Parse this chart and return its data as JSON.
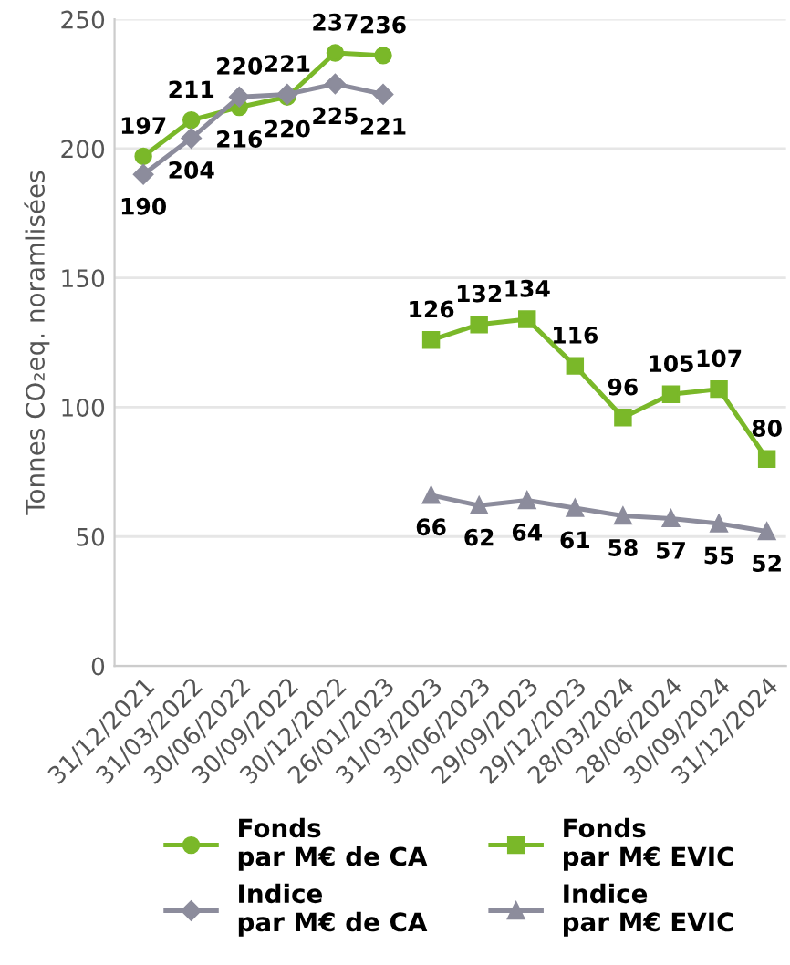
{
  "chart_data": {
    "type": "line",
    "ylabel": "Tonnes CO₂eq. noramlisées",
    "categories": [
      "31/12/2021",
      "31/03/2022",
      "30/06/2022",
      "30/09/2022",
      "30/12/2022",
      "26/01/2023",
      "31/03/2023",
      "30/06/2023",
      "29/09/2023",
      "29/12/2023",
      "28/03/2024",
      "28/06/2024",
      "30/09/2024",
      "31/12/2024"
    ],
    "series": [
      {
        "name": "Fonds\npar M€ de CA",
        "color": "#7ab829",
        "marker": "circle",
        "values": [
          197,
          211,
          216,
          220,
          237,
          236,
          null,
          null,
          null,
          null,
          null,
          null,
          null,
          null
        ]
      },
      {
        "name": "Indice\npar M€ de CA",
        "color": "#8c8c9c",
        "marker": "diamond",
        "values": [
          190,
          204,
          220,
          221,
          225,
          221,
          null,
          null,
          null,
          null,
          null,
          null,
          null,
          null
        ]
      },
      {
        "name": "Fonds\npar M€ EVIC",
        "color": "#7ab829",
        "marker": "square",
        "values": [
          null,
          null,
          null,
          null,
          null,
          null,
          126,
          132,
          134,
          116,
          96,
          105,
          107,
          80
        ]
      },
      {
        "name": "Indice\npar M€ EVIC",
        "color": "#8c8c9c",
        "marker": "triangle",
        "values": [
          null,
          null,
          null,
          null,
          null,
          null,
          66,
          62,
          64,
          61,
          58,
          57,
          55,
          52
        ]
      }
    ],
    "ylim": [
      0,
      250
    ],
    "yticks": [
      0,
      50,
      100,
      150,
      200,
      250
    ],
    "grid": "y",
    "legend": "bottom",
    "data_labels": true,
    "line_style": "solid"
  }
}
